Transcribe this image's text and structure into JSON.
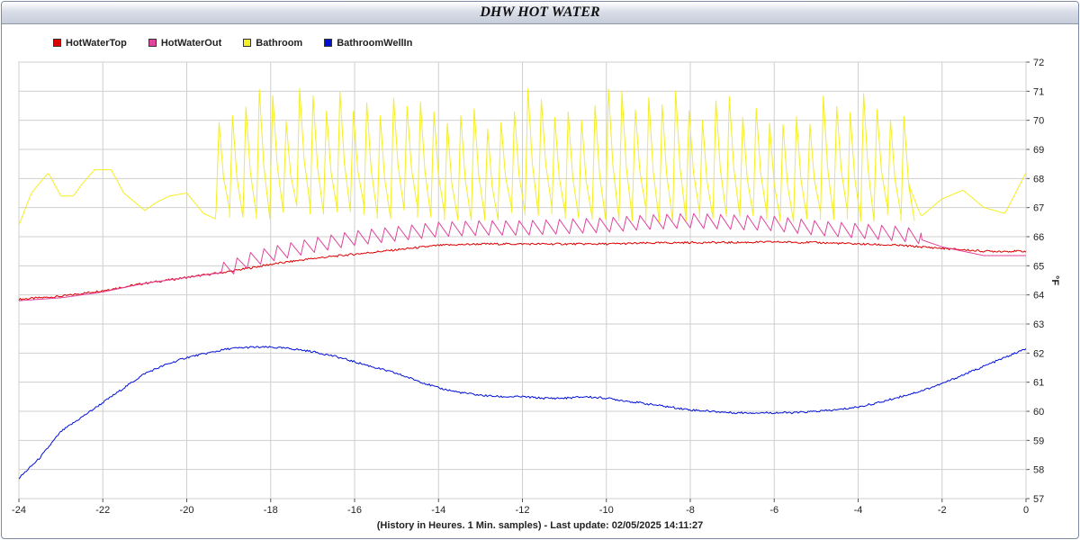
{
  "title": "DHW HOT WATER",
  "footer": "(History in Heures. 1 Min. samples) - Last update: 02/05/2025 14:11:27",
  "chart_data": {
    "type": "line",
    "title": "DHW HOT WATER",
    "xlabel": "(History in Heures. 1 Min. samples) - Last update: 02/05/2025 14:11:27",
    "ylabel": "°F",
    "xlim": [
      -24,
      0
    ],
    "ylim": [
      57,
      72
    ],
    "x_ticks": [
      "-24",
      "-22",
      "-20",
      "-18",
      "-16",
      "-14",
      "-12",
      "-10",
      "-8",
      "-6",
      "-4",
      "-2",
      "0"
    ],
    "y_ticks": [
      "57",
      "58",
      "59",
      "60",
      "61",
      "62",
      "63",
      "64",
      "65",
      "66",
      "67",
      "68",
      "69",
      "70",
      "71",
      "72"
    ],
    "y_axis_side": "right",
    "grid": true,
    "legend_position": "top-left",
    "series": [
      {
        "name": "HotWaterTop",
        "color": "#dd0000",
        "x": [
          -24,
          -23,
          -22,
          -21,
          -20,
          -19,
          -18,
          -17,
          -16,
          -15,
          -14,
          -13,
          -12,
          -11,
          -10,
          -9,
          -8,
          -7,
          -6,
          -5,
          -4,
          -3,
          -2,
          -1,
          0
        ],
        "values": [
          63.85,
          63.95,
          64.15,
          64.4,
          64.6,
          64.8,
          65.05,
          65.25,
          65.4,
          65.55,
          65.7,
          65.75,
          65.75,
          65.75,
          65.75,
          65.78,
          65.8,
          65.8,
          65.82,
          65.8,
          65.75,
          65.7,
          65.6,
          65.5,
          65.5
        ]
      },
      {
        "name": "HotWaterOut",
        "color": "#e0449c",
        "x": [
          -24,
          -23,
          -22,
          -21,
          -20,
          -19,
          -18.5,
          -18,
          -17,
          -16,
          -15,
          -14,
          -13,
          -12,
          -11,
          -10,
          -9,
          -8,
          -7,
          -6,
          -5,
          -4,
          -3,
          -2.5,
          -2,
          -1,
          0
        ],
        "values": [
          63.8,
          63.9,
          64.1,
          64.4,
          64.6,
          64.8,
          65.1,
          65.3,
          65.6,
          65.85,
          66.0,
          66.15,
          66.2,
          66.2,
          66.25,
          66.3,
          66.4,
          66.45,
          66.4,
          66.35,
          66.2,
          66.1,
          66.0,
          65.9,
          65.65,
          65.35,
          65.35
        ],
        "oscillation": {
          "from": -19.2,
          "to": -2.5,
          "amplitude": 0.25
        }
      },
      {
        "name": "Bathroom",
        "color": "#f5ee20",
        "x": [
          -24,
          -23.7,
          -23.3,
          -23,
          -22.7,
          -22.5,
          -22.2,
          -21.8,
          -21.5,
          -21,
          -20.7,
          -20.4,
          -20,
          -19.6,
          -19.3
        ],
        "values": [
          66.4,
          67.5,
          68.2,
          67.4,
          67.4,
          67.8,
          68.3,
          68.3,
          67.5,
          66.9,
          67.2,
          67.4,
          67.5,
          66.8,
          66.6
        ],
        "oscillation": {
          "from": -19.3,
          "to": -2.8,
          "peak": 70.4,
          "trough": 66.8
        },
        "tail_x": [
          -2.8,
          -2.5,
          -2,
          -1.5,
          -1,
          -0.5,
          0
        ],
        "tail_values": [
          67.8,
          66.7,
          67.3,
          67.6,
          67.0,
          66.8,
          68.2
        ]
      },
      {
        "name": "BathroomWellIn",
        "color": "#0010d8",
        "x": [
          -24,
          -23.5,
          -23,
          -22.5,
          -22,
          -21.5,
          -21,
          -20.5,
          -20,
          -19.5,
          -19,
          -18.5,
          -18,
          -17.5,
          -17,
          -16.5,
          -16,
          -15.5,
          -15,
          -14.5,
          -14,
          -13.5,
          -13,
          -12.5,
          -12,
          -11.5,
          -11,
          -10.5,
          -10,
          -9.5,
          -9,
          -8.5,
          -8,
          -7.5,
          -7,
          -6.5,
          -6,
          -5.5,
          -5,
          -4.5,
          -4,
          -3.5,
          -3,
          -2.5,
          -2,
          -1.5,
          -1,
          -0.5,
          0
        ],
        "values": [
          57.7,
          58.4,
          59.3,
          59.8,
          60.3,
          60.8,
          61.3,
          61.6,
          61.85,
          62.0,
          62.15,
          62.2,
          62.2,
          62.15,
          62.05,
          61.9,
          61.7,
          61.5,
          61.3,
          61.05,
          60.8,
          60.65,
          60.55,
          60.5,
          60.5,
          60.45,
          60.45,
          60.5,
          60.45,
          60.35,
          60.25,
          60.15,
          60.05,
          60.0,
          59.95,
          59.95,
          59.95,
          59.95,
          60.0,
          60.05,
          60.15,
          60.3,
          60.5,
          60.7,
          60.95,
          61.25,
          61.55,
          61.85,
          62.15
        ]
      }
    ]
  }
}
